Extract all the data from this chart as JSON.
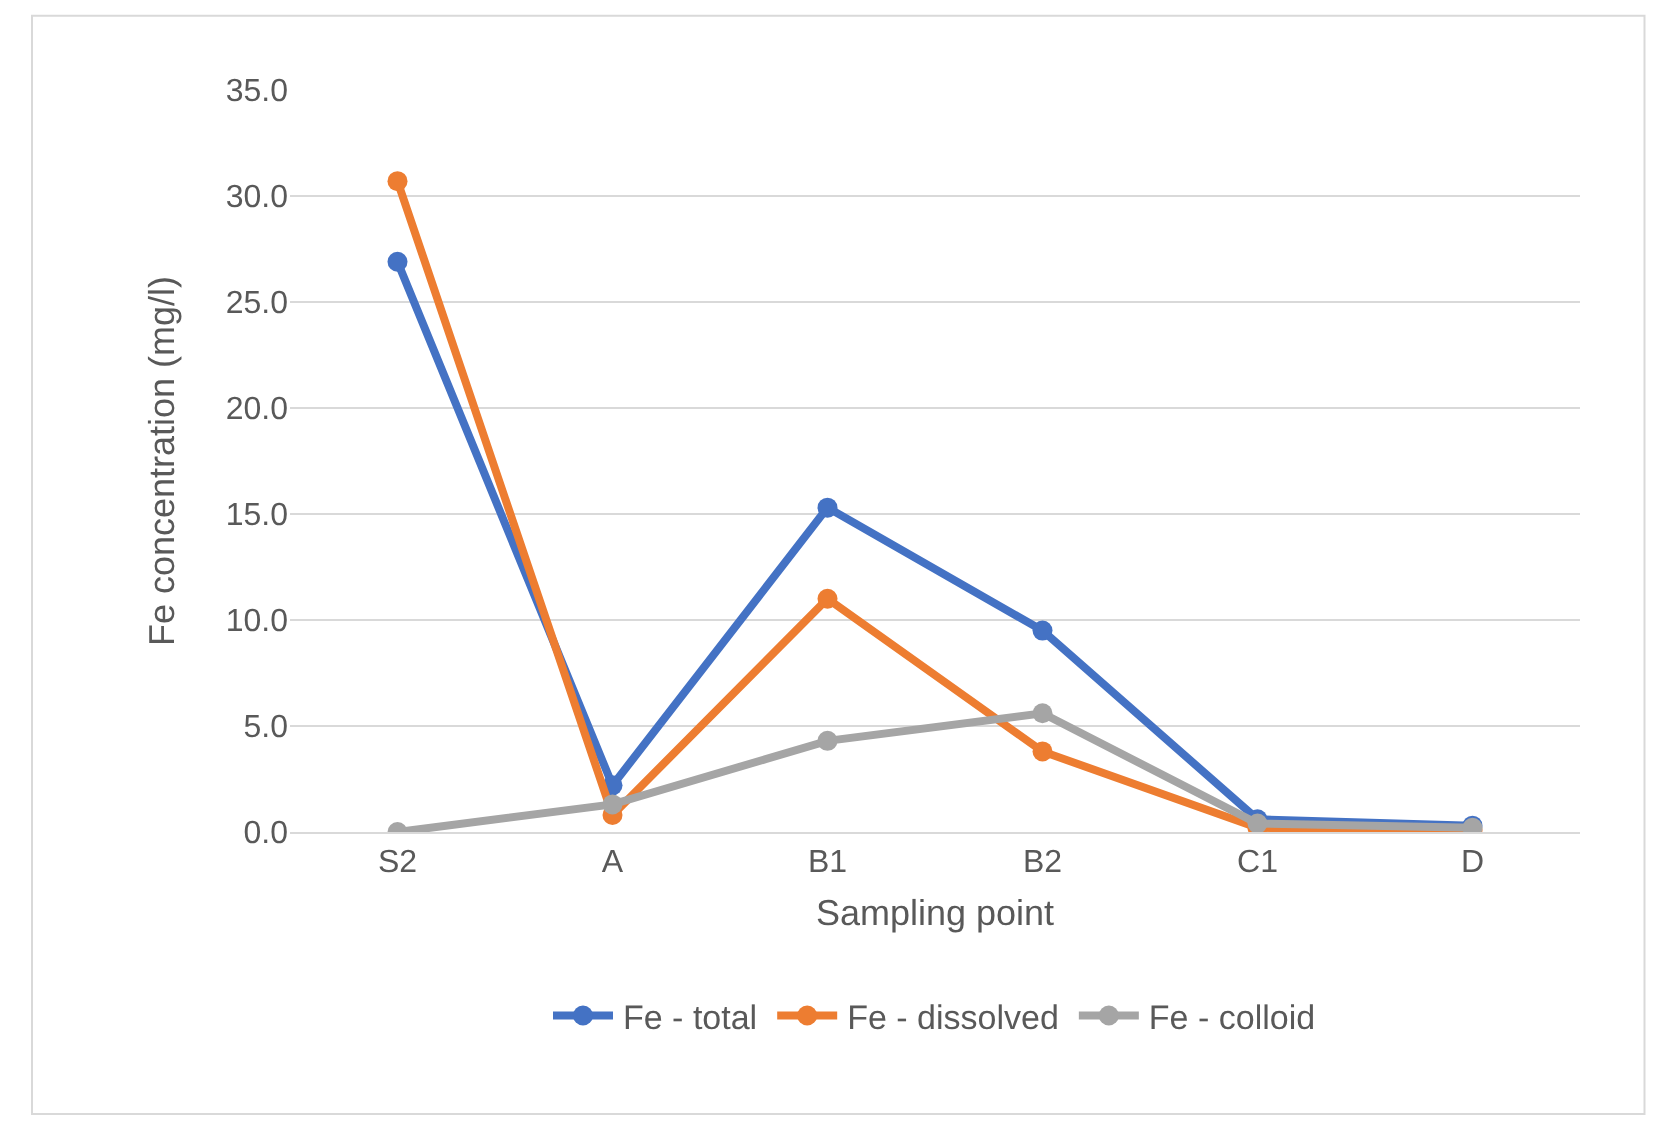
{
  "chart_data": {
    "type": "line",
    "xlabel": "Sampling point",
    "ylabel": "Fe concentration (mg/l)",
    "categories": [
      "S2",
      "A",
      "B1",
      "B2",
      "C1",
      "D"
    ],
    "series": [
      {
        "name": "Fe - total",
        "color": "#4472c4",
        "values": [
          26.9,
          2.2,
          15.3,
          9.5,
          0.6,
          0.3
        ]
      },
      {
        "name": "Fe - dissolved",
        "color": "#ed7d31",
        "values": [
          30.7,
          0.8,
          11.0,
          3.8,
          0.2,
          0.1
        ]
      },
      {
        "name": "Fe - colloid",
        "color": "#a5a5a5",
        "values": [
          0,
          1.3,
          4.3,
          5.6,
          0.4,
          0.2
        ]
      }
    ],
    "ylim": [
      0,
      35
    ],
    "yticks": [
      {
        "value": 0,
        "label": "0.0"
      },
      {
        "value": 5,
        "label": "5.0"
      },
      {
        "value": 10,
        "label": "10.0"
      },
      {
        "value": 15,
        "label": "15.0"
      },
      {
        "value": 20,
        "label": "20.0"
      },
      {
        "value": 25,
        "label": "25.0"
      },
      {
        "value": 30,
        "label": "30.0"
      },
      {
        "value": 35,
        "label": "35.0"
      }
    ],
    "grid": "y",
    "legend": "bottom",
    "marker": "circle",
    "line_style": "solid"
  }
}
